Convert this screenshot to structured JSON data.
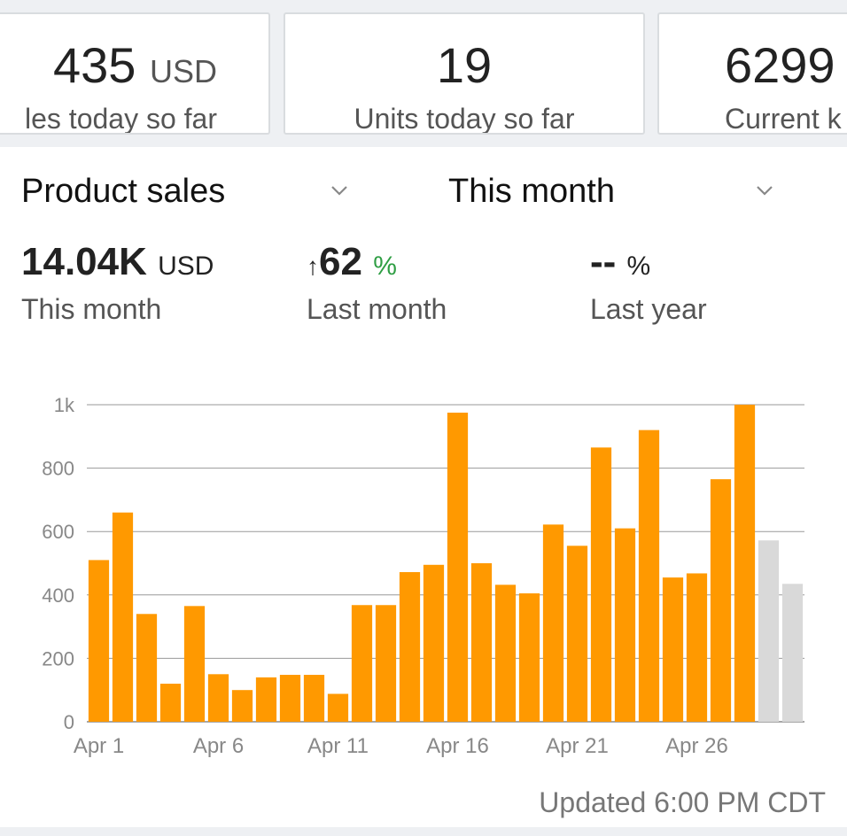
{
  "kpis": [
    {
      "value": "435",
      "unit": "USD",
      "label": "les today so far"
    },
    {
      "value": "19",
      "unit": "",
      "label": "Units today so far"
    },
    {
      "value": "6299",
      "unit": "",
      "label": "Current k"
    }
  ],
  "selectors": {
    "metric": "Product sales",
    "period": "This month"
  },
  "metrics": {
    "total": {
      "value": "14.04K",
      "unit": "USD",
      "label": "This month"
    },
    "vs_last_month": {
      "arrow": "↑",
      "value": "62",
      "unit": "%",
      "label": "Last month"
    },
    "vs_last_year": {
      "value": "--",
      "unit": "%",
      "label": "Last year"
    }
  },
  "colors": {
    "bar": "#ff9900",
    "bar_future": "#d9d9d9",
    "positive": "#2f9e44"
  },
  "chart_data": {
    "type": "bar",
    "categories": [
      "Apr 1",
      "Apr 2",
      "Apr 3",
      "Apr 4",
      "Apr 5",
      "Apr 6",
      "Apr 7",
      "Apr 8",
      "Apr 9",
      "Apr 10",
      "Apr 11",
      "Apr 12",
      "Apr 13",
      "Apr 14",
      "Apr 15",
      "Apr 16",
      "Apr 17",
      "Apr 18",
      "Apr 19",
      "Apr 20",
      "Apr 21",
      "Apr 22",
      "Apr 23",
      "Apr 24",
      "Apr 25",
      "Apr 26",
      "Apr 27",
      "Apr 28",
      "Apr 29",
      "Apr 30"
    ],
    "values": [
      510,
      660,
      340,
      120,
      365,
      150,
      100,
      140,
      148,
      148,
      88,
      368,
      368,
      472,
      495,
      975,
      500,
      432,
      405,
      622,
      555,
      865,
      610,
      920,
      455,
      468,
      765,
      1000,
      572,
      435
    ],
    "future_from_index": 28,
    "xtick_labels": [
      "Apr 1",
      "Apr 6",
      "Apr 11",
      "Apr 16",
      "Apr 21",
      "Apr 26"
    ],
    "xtick_indices": [
      0,
      5,
      10,
      15,
      20,
      25
    ],
    "yticks": [
      0,
      200,
      400,
      600,
      800,
      1000
    ],
    "ytick_labels": [
      "0",
      "200",
      "400",
      "600",
      "800",
      "1k"
    ],
    "ylim": [
      0,
      1000
    ],
    "grid": true
  },
  "footer": {
    "updated": "Updated 6:00 PM CDT"
  }
}
